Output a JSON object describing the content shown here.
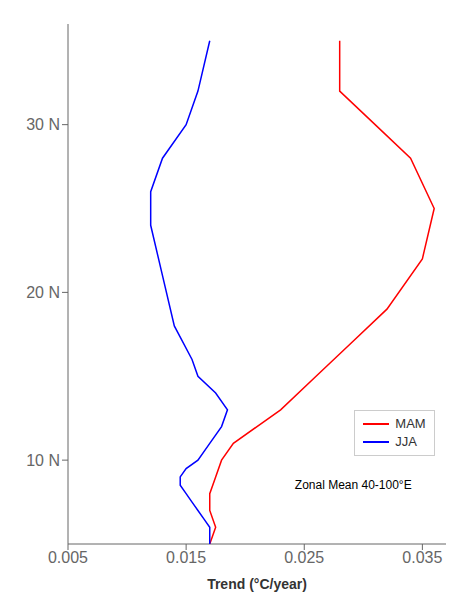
{
  "chart_data": {
    "type": "line",
    "xlabel": "Trend (°C/year)",
    "annotation": "Zonal Mean 40-100°E",
    "xlim": [
      0.005,
      0.037
    ],
    "ylim": [
      5,
      36
    ],
    "xticks": [
      0.005,
      0.015,
      0.025,
      0.035
    ],
    "yticks": [
      {
        "value": 10,
        "label": "10 N"
      },
      {
        "value": 20,
        "label": "20 N"
      },
      {
        "value": 30,
        "label": "30 N"
      }
    ],
    "legend": "lower right",
    "grid": false,
    "series": [
      {
        "name": "MAM",
        "color": "red",
        "x": [
          0.017,
          0.0175,
          0.017,
          0.017,
          0.0175,
          0.018,
          0.019,
          0.021,
          0.023,
          0.026,
          0.029,
          0.032,
          0.035,
          0.036,
          0.034,
          0.031,
          0.028,
          0.028
        ],
        "values": [
          5,
          6,
          7,
          8,
          9,
          10,
          11,
          12,
          13,
          15,
          17,
          19,
          22,
          25,
          28,
          30,
          32,
          35
        ]
      },
      {
        "name": "JJA",
        "color": "blue",
        "x": [
          0.017,
          0.017,
          0.017,
          0.0165,
          0.016,
          0.0155,
          0.015,
          0.0145,
          0.0145,
          0.015,
          0.016,
          0.017,
          0.018,
          0.0185,
          0.0175,
          0.016,
          0.0155,
          0.014,
          0.013,
          0.012,
          0.012,
          0.013,
          0.015,
          0.016,
          0.017
        ],
        "values": [
          5,
          5.5,
          6,
          6.5,
          7,
          7.5,
          8,
          8.5,
          9,
          9.5,
          10,
          11,
          12,
          13,
          14,
          15,
          16,
          18,
          21,
          24,
          26,
          28,
          30,
          32,
          35
        ]
      }
    ]
  }
}
